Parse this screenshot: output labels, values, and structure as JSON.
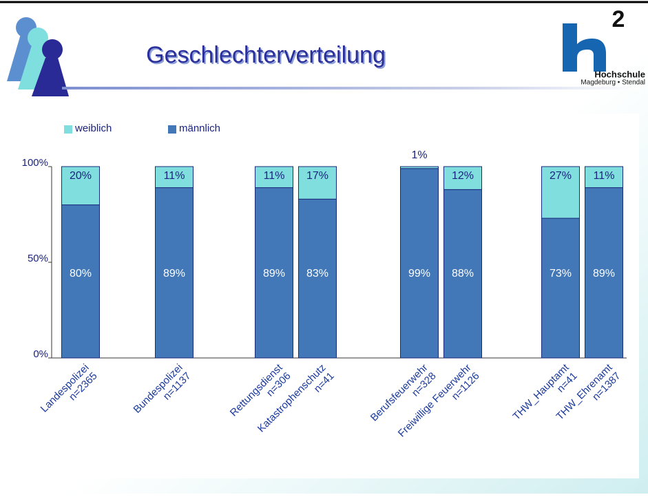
{
  "chart_data": {
    "type": "stacked_bar",
    "title": "Geschlechterverteilung",
    "categories": [
      [
        "Landespolizei",
        "n=2365"
      ],
      [
        "Bundespolizei",
        "n=1137"
      ],
      [
        "Rettungsdienst",
        "n=306"
      ],
      [
        "Katastrophenschutz",
        "n=41"
      ],
      [
        "Berufsfeuerwehr",
        "n=328"
      ],
      [
        "Freiwillige Feuerwehr",
        "n=1126"
      ],
      [
        "THW_Hauptamt",
        "n=41"
      ],
      [
        "THW_Ehrenamt",
        "n=1387"
      ]
    ],
    "series": [
      {
        "name": "männlich",
        "color": "#4277b8",
        "values": [
          80,
          89,
          89,
          83,
          99,
          88,
          73,
          89
        ],
        "value_labels": [
          "80%",
          "89%",
          "89%",
          "83%",
          "99%",
          "88%",
          "73%",
          "89%"
        ]
      },
      {
        "name": "weiblich",
        "color": "#80dede",
        "values": [
          20,
          11,
          11,
          17,
          1,
          12,
          27,
          11
        ],
        "value_labels": [
          "20%",
          "11%",
          "11%",
          "17%",
          "1%",
          "12%",
          "27%",
          "11%"
        ]
      }
    ],
    "ylim": [
      0,
      100
    ],
    "yticks": [
      {
        "value": 0,
        "label": "0%"
      },
      {
        "value": 50,
        "label": "50%"
      },
      {
        "value": 100,
        "label": "100%"
      }
    ]
  },
  "logo": {
    "mark": "2",
    "name": "Hochschule",
    "place": "Magdeburg • Stendal"
  }
}
